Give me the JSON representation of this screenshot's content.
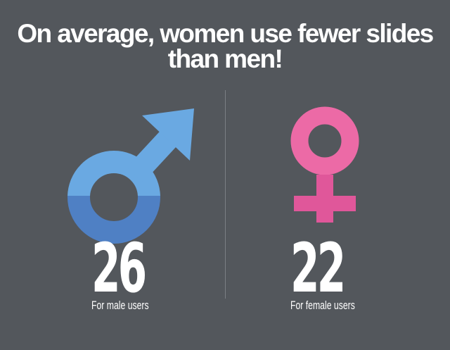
{
  "headline": {
    "line1": "On average, women use fewer slides",
    "line2": "than men!"
  },
  "male": {
    "value": "26",
    "caption": "For male users",
    "icon": "male-symbol-icon",
    "color_light": "#6aa9e2",
    "color_dark": "#4f80c4"
  },
  "female": {
    "value": "22",
    "caption": "For female users",
    "icon": "female-symbol-icon",
    "color_light": "#ec6aa6",
    "color_dark": "#e0579a"
  },
  "colors": {
    "background": "#53575c",
    "divider": "#7b7f84",
    "text": "#ffffff"
  }
}
